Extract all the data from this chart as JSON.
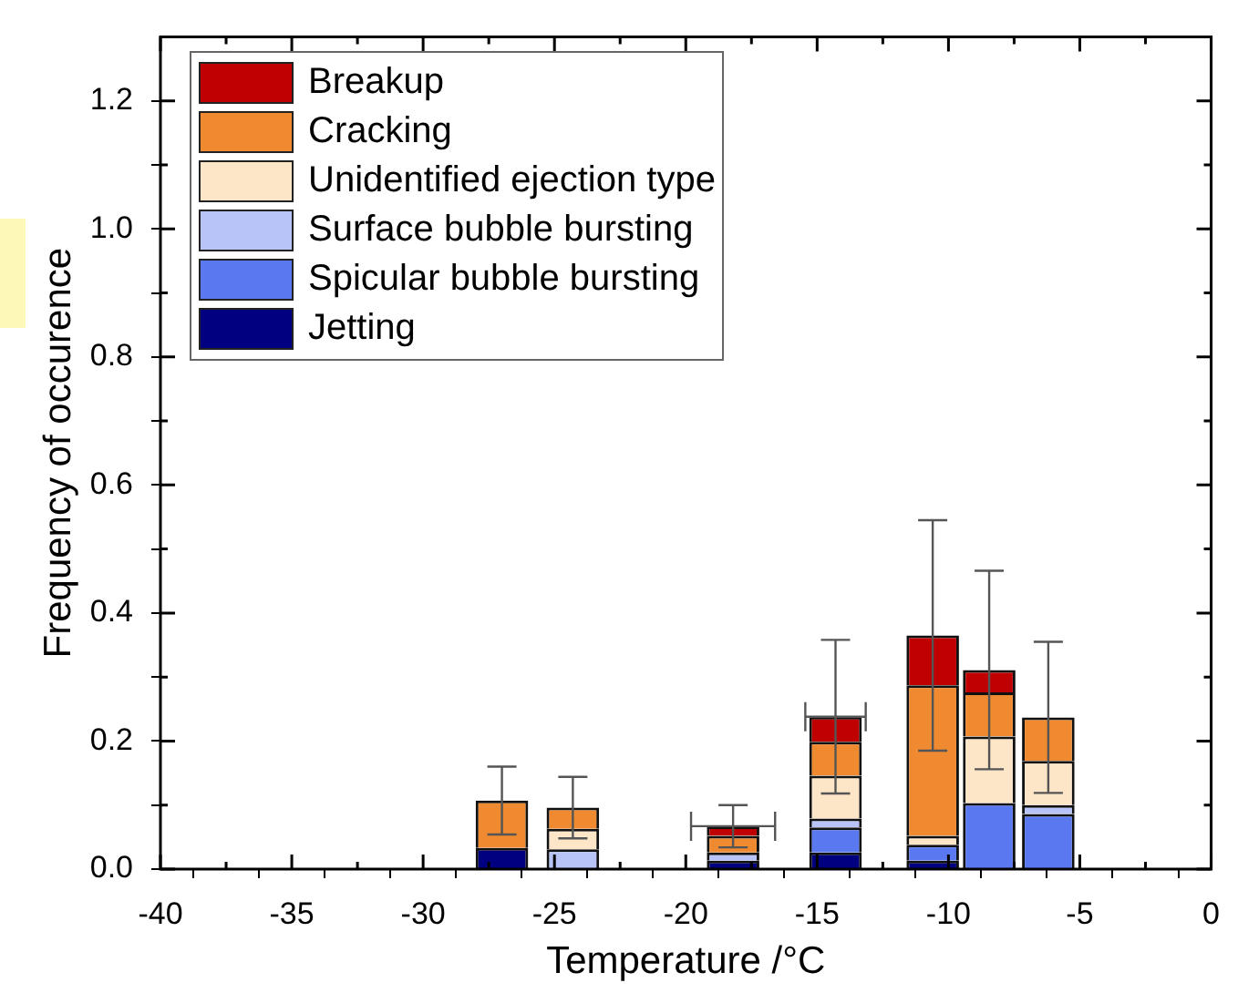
{
  "chart_data": {
    "type": "bar",
    "stacked": true,
    "xlabel": "Temperature /°C",
    "ylabel": "Frequency of occurence",
    "x": [
      -27.0,
      -24.3,
      -18.2,
      -14.3,
      -10.6,
      -8.45,
      -6.2
    ],
    "xlim": [
      -40,
      0
    ],
    "ylim": [
      0,
      1.3
    ],
    "xticks": [
      -40,
      {
        "value": -37.5,
        "label": null
      },
      -35,
      {
        "value": -32.5,
        "label": null
      },
      -30,
      {
        "value": -27.5,
        "label": null
      },
      -25,
      {
        "value": -22.5,
        "label": null
      },
      -20,
      {
        "value": -17.5,
        "label": null
      },
      -15,
      {
        "value": -12.5,
        "label": null
      },
      -10,
      {
        "value": -7.5,
        "label": null
      },
      -5,
      {
        "value": -2.5,
        "label": null
      },
      0
    ],
    "yticks": [
      {
        "value": 0,
        "label": "0.0"
      },
      {
        "value": 0.1,
        "label": null
      },
      {
        "value": 0.2,
        "label": "0.2"
      },
      {
        "value": 0.3,
        "label": null
      },
      {
        "value": 0.4,
        "label": "0.4"
      },
      {
        "value": 0.5,
        "label": null
      },
      {
        "value": 0.6,
        "label": "0.6"
      },
      {
        "value": 0.7,
        "label": null
      },
      {
        "value": 0.8,
        "label": "0.8"
      },
      {
        "value": 0.9,
        "label": null
      },
      {
        "value": 1.0,
        "label": "1.0"
      },
      {
        "value": 1.1,
        "label": null
      },
      {
        "value": 1.2,
        "label": "1.2"
      }
    ],
    "grid": false,
    "legend": "top left",
    "series": [
      {
        "name": "Jetting",
        "color": "#000080",
        "values": [
          0.033,
          0,
          0.013,
          0.026,
          0.013,
          0,
          0
        ]
      },
      {
        "name": "Spicular bubble bursting",
        "color": "#5a78f0",
        "values": [
          0,
          0,
          0,
          0.039,
          0.025,
          0.103,
          0.086
        ]
      },
      {
        "name": "Surface bubble bursting",
        "color": "#b8c4f8",
        "values": [
          0,
          0.031,
          0.013,
          0.014,
          0,
          0,
          0.014
        ]
      },
      {
        "name": "Unidentified ejection type",
        "color": "#fde5c8",
        "values": [
          0,
          0.032,
          0,
          0.067,
          0.014,
          0.104,
          0.069
        ]
      },
      {
        "name": "Cracking",
        "color": "#f08a30",
        "values": [
          0.074,
          0.033,
          0.026,
          0.053,
          0.235,
          0.069,
          0.068
        ]
      },
      {
        "name": "Breakup",
        "color": "#c00000",
        "values": [
          0,
          0,
          0.015,
          0.039,
          0.078,
          0.035,
          0
        ],
        "errors": [
          0.053,
          0.048,
          0.033,
          0.12,
          0.18,
          0.155,
          0.118
        ],
        "xerrors": [
          null,
          null,
          1.6,
          1.15,
          null,
          null,
          null
        ]
      }
    ]
  }
}
